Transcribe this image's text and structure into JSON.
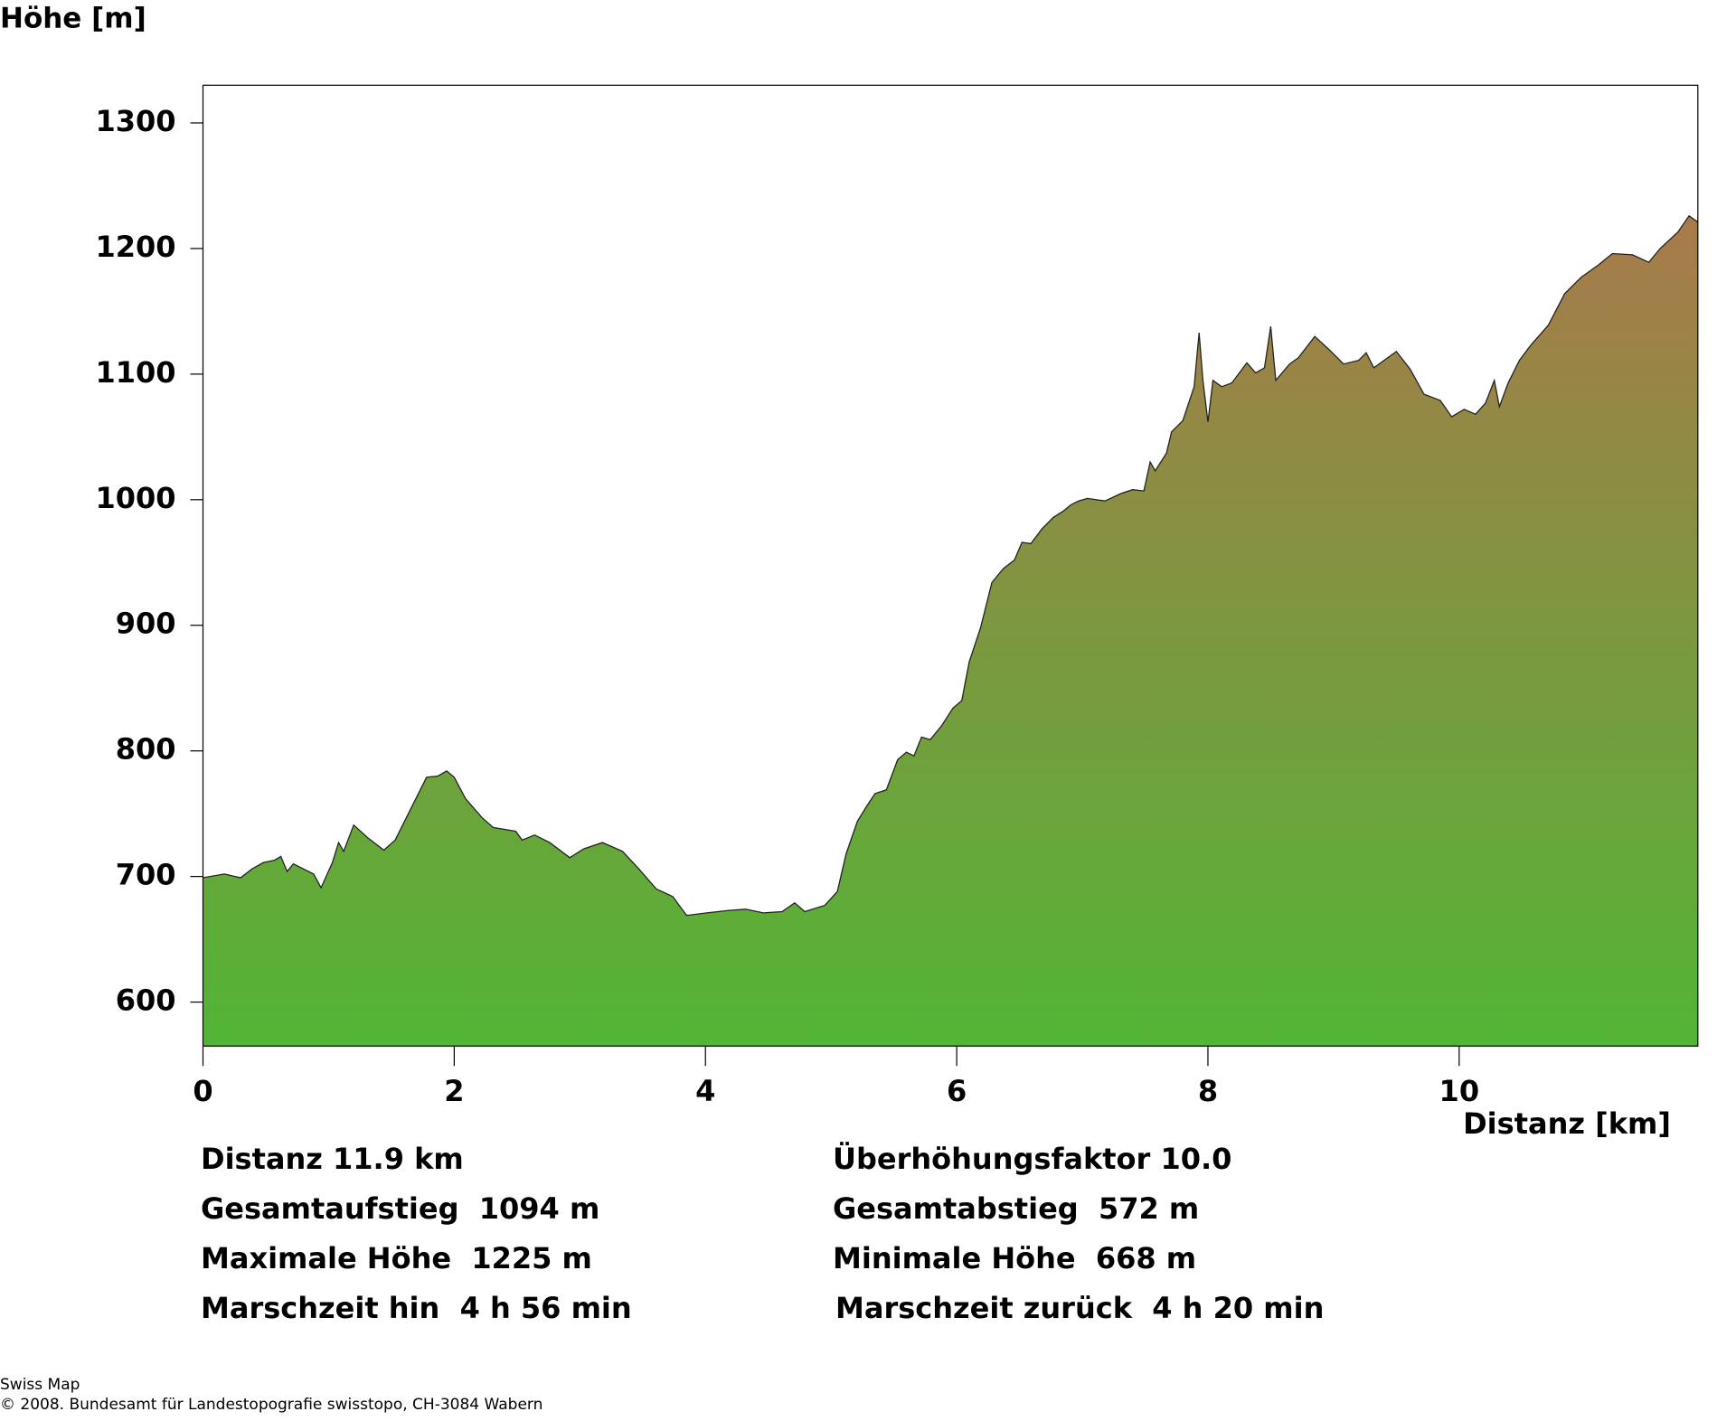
{
  "chart_data": {
    "type": "area",
    "y_axis_label": "Höhe [m]",
    "x_axis_label": "Distanz [km]",
    "xlim": [
      0,
      11.9
    ],
    "ylim": [
      565,
      1330
    ],
    "xticks": [
      0,
      2,
      4,
      6,
      8,
      10
    ],
    "yticks": [
      600,
      700,
      800,
      900,
      1000,
      1100,
      1200,
      1300
    ],
    "color_top": "#a87a4a",
    "color_bottom": "#52b535",
    "line_color": "#222222",
    "x": [
      0,
      0.17,
      0.3,
      0.39,
      0.48,
      0.57,
      0.62,
      0.67,
      0.72,
      0.88,
      0.94,
      1.03,
      1.08,
      1.12,
      1.2,
      1.31,
      1.44,
      1.53,
      1.58,
      1.66,
      1.78,
      1.87,
      1.94,
      2.0,
      2.09,
      2.22,
      2.31,
      2.49,
      2.54,
      2.64,
      2.76,
      2.92,
      3.03,
      3.18,
      3.34,
      3.47,
      3.61,
      3.74,
      3.85,
      4.01,
      4.19,
      4.32,
      4.46,
      4.61,
      4.71,
      4.79,
      4.95,
      5.05,
      5.12,
      5.21,
      5.29,
      5.35,
      5.44,
      5.53,
      5.6,
      5.66,
      5.72,
      5.79,
      5.88,
      5.97,
      6.04,
      6.1,
      6.19,
      6.28,
      6.37,
      6.46,
      6.52,
      6.59,
      6.68,
      6.77,
      6.85,
      6.91,
      6.97,
      7.04,
      7.18,
      7.31,
      7.4,
      7.49,
      7.54,
      7.58,
      7.67,
      7.71,
      7.8,
      7.89,
      7.93,
      7.96,
      8.0,
      8.04,
      8.11,
      8.19,
      8.31,
      8.38,
      8.45,
      8.5,
      8.54,
      8.65,
      8.72,
      8.85,
      8.96,
      9.08,
      9.2,
      9.26,
      9.32,
      9.5,
      9.61,
      9.72,
      9.85,
      9.94,
      10.04,
      10.13,
      10.21,
      10.28,
      10.32,
      10.39,
      10.48,
      10.57,
      10.71,
      10.84,
      10.97,
      11.11,
      11.22,
      11.38,
      11.51,
      11.6,
      11.74,
      11.83,
      11.9
    ],
    "values": [
      699,
      702,
      699,
      706,
      711,
      713,
      716,
      704,
      710,
      702,
      691,
      711,
      727,
      720,
      741,
      731,
      721,
      729,
      739,
      755,
      779,
      780,
      784,
      779,
      762,
      747,
      739,
      736,
      729,
      733,
      727,
      715,
      722,
      727,
      720,
      706,
      690,
      684,
      669,
      671,
      673,
      674,
      671,
      672,
      679,
      672,
      677,
      688,
      718,
      744,
      757,
      766,
      769,
      793,
      799,
      796,
      811,
      809,
      820,
      834,
      840,
      871,
      898,
      934,
      945,
      952,
      966,
      965,
      977,
      986,
      991,
      996,
      999,
      1001,
      999,
      1005,
      1008,
      1007,
      1030,
      1023,
      1037,
      1054,
      1063,
      1090,
      1133,
      1095,
      1062,
      1095,
      1090,
      1093,
      1109,
      1101,
      1105,
      1138,
      1095,
      1108,
      1113,
      1130,
      1120,
      1108,
      1111,
      1117,
      1105,
      1118,
      1104,
      1084,
      1079,
      1066,
      1072,
      1068,
      1077,
      1095,
      1074,
      1093,
      1111,
      1123,
      1139,
      1164,
      1177,
      1187,
      1196,
      1195,
      1189,
      1200,
      1213,
      1226,
      1221
    ]
  },
  "stats": [
    [
      "Distanz 11.9 km",
      "Überhöhungsfaktor 10.0"
    ],
    [
      "Gesamtaufstieg  1094 m",
      "Gesamtabstieg  572 m"
    ],
    [
      "Maximale Höhe  1225 m",
      "Minimale Höhe  668 m"
    ],
    [
      "Marschzeit hin  4 h 56 min",
      "Marschzeit zurück  4 h 20 min"
    ]
  ],
  "footer": [
    "Swiss Map",
    "© 2008. Bundesamt für Landestopografie swisstopo, CH-3084 Wabern"
  ]
}
